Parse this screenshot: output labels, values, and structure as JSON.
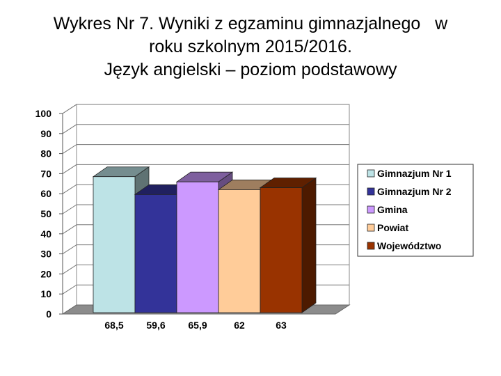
{
  "title_lines": [
    "Wykres Nr 7. Wyniki z egzaminu gimnazjalnego   w",
    "roku szkolnym 2015/2016.",
    "Język angielski – poziom podstawowy"
  ],
  "chart_data": {
    "type": "bar",
    "three_d": true,
    "categories": [
      "Gimnazjum Nr 1",
      "Gimnazjum Nr 2",
      "Gmina",
      "Powiat",
      "Województwo"
    ],
    "values": [
      68.5,
      59.6,
      65.9,
      62,
      63
    ],
    "value_labels": [
      "68,5",
      "59,6",
      "65,9",
      "62",
      "63"
    ],
    "colors": [
      "#bde3e6",
      "#333399",
      "#cc99ff",
      "#ffcc99",
      "#993300"
    ],
    "ylim": [
      0,
      100
    ],
    "yticks": [
      "0",
      "10",
      "20",
      "30",
      "40",
      "50",
      "60",
      "70",
      "80",
      "90",
      "100"
    ],
    "grid": true,
    "legend": {
      "position": "right",
      "entries": [
        "Gimnazjum Nr 1",
        "Gimnazjum Nr 2",
        "Gmina",
        "Powiat",
        "Województwo"
      ]
    }
  }
}
